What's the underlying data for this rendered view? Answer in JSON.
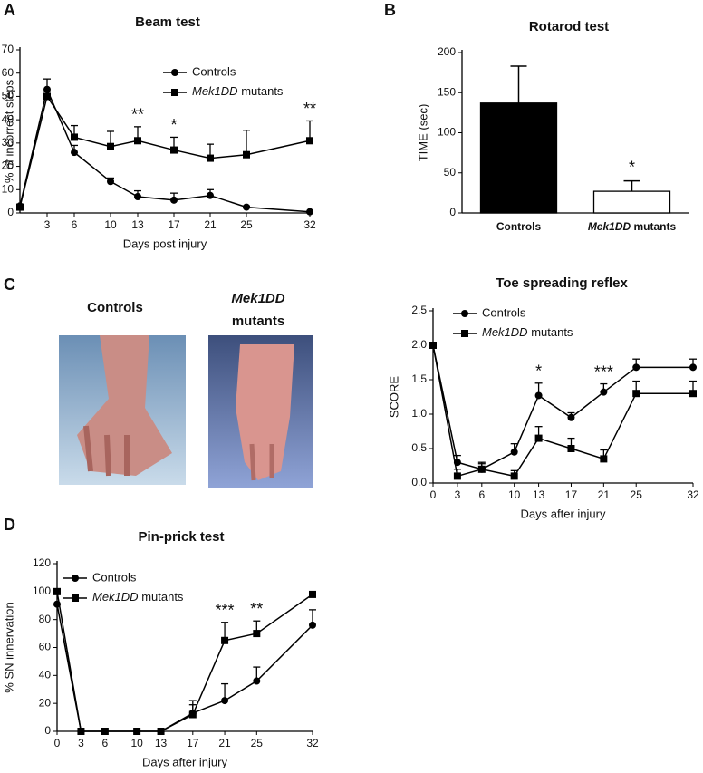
{
  "panel_labels": [
    "A",
    "B",
    "C",
    "D"
  ],
  "photo_labels": {
    "left": "Controls",
    "right": [
      "Mek1DD",
      "mutants"
    ]
  },
  "chart_data": [
    {
      "type": "line",
      "title": "Beam test",
      "x_label": "Days post injury",
      "y_label": "% of incorrect steps",
      "x": [
        0,
        3,
        6,
        10,
        13,
        17,
        21,
        25,
        32
      ],
      "xlim": [
        0,
        32
      ],
      "xticks": [
        3,
        6,
        10,
        13,
        17,
        21,
        25,
        32
      ],
      "ylim": [
        0,
        70
      ],
      "yticks": [
        0,
        10,
        20,
        30,
        40,
        50,
        60,
        70
      ],
      "series": [
        {
          "name": "Controls",
          "color": "#000000",
          "marker": "circle",
          "values": [
            3,
            53,
            26,
            13.5,
            7,
            5.5,
            7.5,
            2.5,
            0.5
          ],
          "errors": [
            0,
            4.5,
            3,
            1.5,
            2.5,
            3,
            2.5,
            0.5,
            0
          ]
        },
        {
          "name": "Mek1DD mutants",
          "color": "#000000",
          "marker": "square",
          "values": [
            2.5,
            50,
            32.5,
            28.5,
            31,
            27,
            23.5,
            25,
            31
          ],
          "errors": [
            0,
            0,
            5,
            6.5,
            6,
            5.5,
            6,
            10.5,
            8.5
          ]
        }
      ],
      "annotations": [
        {
          "text": "**",
          "x": 13
        },
        {
          "text": "*",
          "x": 17
        },
        {
          "text": "**",
          "x": 32
        }
      ]
    },
    {
      "type": "bar",
      "title": "Rotarod test",
      "y_label": "TIME (sec)",
      "categories": [
        "Controls",
        "Mek1DD mutants"
      ],
      "values": [
        137,
        27
      ],
      "errors": [
        46,
        13
      ],
      "colors": [
        "#000000",
        "#ffffff"
      ],
      "ylim": [
        0,
        200
      ],
      "yticks": [
        0,
        50,
        100,
        150,
        200
      ],
      "annotations": [
        {
          "text": "*",
          "category": "Mek1DD mutants"
        }
      ]
    },
    {
      "type": "line",
      "title": "Toe spreading reflex",
      "x_label": "Days after injury",
      "y_label": "SCORE",
      "x": [
        0,
        3,
        6,
        10,
        13,
        17,
        21,
        25,
        32
      ],
      "xlim": [
        0,
        32
      ],
      "xticks": [
        0,
        3,
        6,
        10,
        13,
        17,
        21,
        25,
        32
      ],
      "ylim": [
        0,
        2.5
      ],
      "yticks": [
        {
          "value": 0,
          "label": "0.0"
        },
        0.5,
        {
          "value": 1,
          "label": "1.0"
        },
        1.5,
        {
          "value": 2,
          "label": "2.0"
        },
        2.5
      ],
      "series": [
        {
          "name": "Controls",
          "color": "#000000",
          "marker": "circle",
          "values": [
            2.0,
            0.3,
            0.2,
            0.45,
            1.27,
            0.95,
            1.32,
            1.68,
            1.68
          ],
          "errors": [
            0,
            0.1,
            0.1,
            0.12,
            0.18,
            0.07,
            0.12,
            0.12,
            0.12
          ]
        },
        {
          "name": "Mek1DD mutants",
          "color": "#000000",
          "marker": "square",
          "values": [
            2.0,
            0.1,
            0.2,
            0.1,
            0.65,
            0.5,
            0.35,
            1.3,
            1.3
          ],
          "errors": [
            0,
            0.1,
            0.08,
            0.08,
            0.17,
            0.15,
            0.13,
            0.18,
            0.18
          ]
        }
      ],
      "annotations": [
        {
          "text": "*",
          "x": 13
        },
        {
          "text": "***",
          "x": 21
        }
      ]
    },
    {
      "type": "line",
      "title": "Pin-prick test",
      "x_label": "Days after injury",
      "y_label": "% SN innervation",
      "x": [
        0,
        3,
        6,
        10,
        13,
        17,
        21,
        25,
        32
      ],
      "xlim": [
        0,
        32
      ],
      "xticks": [
        0,
        3,
        6,
        10,
        13,
        17,
        21,
        25,
        32
      ],
      "ylim": [
        0,
        120
      ],
      "yticks": [
        0,
        20,
        40,
        60,
        80,
        100,
        120
      ],
      "series": [
        {
          "name": "Controls",
          "color": "#000000",
          "marker": "circle",
          "values": [
            91,
            0,
            0,
            0,
            0,
            13,
            22,
            36,
            76
          ],
          "errors": [
            0,
            0,
            0,
            0,
            0,
            9,
            12,
            10,
            11
          ]
        },
        {
          "name": "Mek1DD mutants",
          "color": "#000000",
          "marker": "square",
          "values": [
            100,
            0,
            0,
            0,
            0,
            12,
            65,
            70,
            98
          ],
          "errors": [
            0,
            0,
            0,
            0,
            0,
            7,
            13,
            9,
            0
          ]
        }
      ],
      "annotations": [
        {
          "text": "***",
          "x": 21
        },
        {
          "text": "**",
          "x": 25
        }
      ]
    }
  ]
}
